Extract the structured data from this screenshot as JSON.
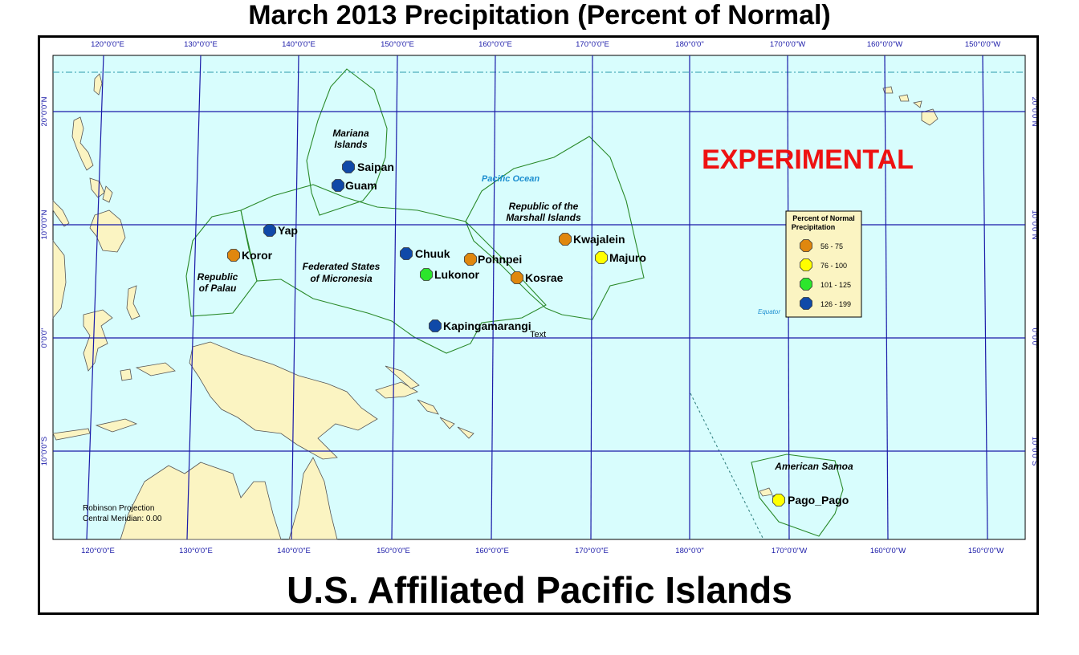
{
  "title": "March 2013 Precipitation (Percent of Normal)",
  "subtitle": "U.S. Affiliated Pacific Islands",
  "experimental_label": "EXPERIMENTAL",
  "projection_label": "Robinson Projection",
  "meridian_label": "Central Meridian: 0.00",
  "ocean_label": "Pacific Ocean",
  "equator_label": "Equator",
  "stray_text": "Text",
  "colors": {
    "ocean": "#d8fdfd",
    "land": "#fbf4c2",
    "grid": "#1a1aa8",
    "boundary": "#2a8a2a",
    "c56_75": "#e0870e",
    "c76_100": "#ffff00",
    "c101_125": "#2ce62c",
    "c126_199": "#1049a8"
  },
  "longitude_labels": [
    "120°0'0\"E",
    "130°0'0\"E",
    "140°0'0\"E",
    "150°0'0\"E",
    "160°0'0\"E",
    "170°0'0\"E",
    "180°0'0\"",
    "170°0'0\"W",
    "160°0'0\"W",
    "150°0'0\"W"
  ],
  "latitude_labels": [
    "20°0'0\"N",
    "10°0'0\"N",
    "0°0'0\"",
    "10°0'0\"S"
  ],
  "regions": {
    "mariana_1": "Mariana",
    "mariana_2": "Islands",
    "marshall_1": "Republic of the",
    "marshall_2": "Marshall Islands",
    "fsm_1": "Federated States",
    "fsm_2": "of Micronesia",
    "palau_1": "Republic",
    "palau_2": "of Palau",
    "samoa": "American Samoa"
  },
  "legend": {
    "title_1": "Percent of Normal",
    "title_2": "Precipitation",
    "items": [
      {
        "label": "56 - 75",
        "color": "#e0870e"
      },
      {
        "label": "76 - 100",
        "color": "#ffff00"
      },
      {
        "label": "101 - 125",
        "color": "#2ce62c"
      },
      {
        "label": "126 - 199",
        "color": "#1049a8"
      }
    ]
  },
  "stations": [
    {
      "name": "Saipan",
      "category": "126 - 199",
      "color": "#1049a8"
    },
    {
      "name": "Guam",
      "category": "126 - 199",
      "color": "#1049a8"
    },
    {
      "name": "Yap",
      "category": "126 - 199",
      "color": "#1049a8"
    },
    {
      "name": "Koror",
      "category": "56 - 75",
      "color": "#e0870e"
    },
    {
      "name": "Chuuk",
      "category": "126 - 199",
      "color": "#1049a8"
    },
    {
      "name": "Lukonor",
      "category": "101 - 125",
      "color": "#2ce62c"
    },
    {
      "name": "Pohnpei",
      "category": "56 - 75",
      "color": "#e0870e"
    },
    {
      "name": "Kosrae",
      "category": "56 - 75",
      "color": "#e0870e"
    },
    {
      "name": "Kwajalein",
      "category": "56 - 75",
      "color": "#e0870e"
    },
    {
      "name": "Majuro",
      "category": "76 - 100",
      "color": "#ffff00"
    },
    {
      "name": "Kapingamarangi",
      "category": "126 - 199",
      "color": "#1049a8"
    },
    {
      "name": "Pago_Pago",
      "category": "76 - 100",
      "color": "#ffff00"
    }
  ]
}
